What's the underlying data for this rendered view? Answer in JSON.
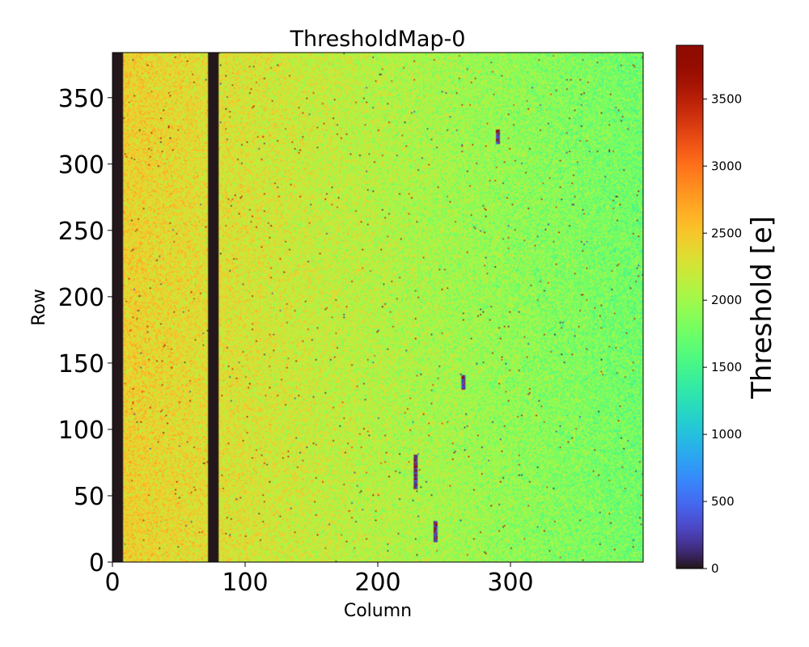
{
  "chart_data": {
    "type": "heatmap",
    "title": "ThresholdMap-0",
    "xlabel": "Column",
    "ylabel": "Row",
    "xlim": [
      0,
      400
    ],
    "ylim": [
      0,
      384
    ],
    "x_ticks": [
      0,
      100,
      200,
      300
    ],
    "y_ticks": [
      0,
      50,
      100,
      150,
      200,
      250,
      300,
      350
    ],
    "colorbar": {
      "label": "Threshold [e]",
      "range": [
        0,
        3900
      ],
      "ticks": [
        0,
        500,
        1000,
        1500,
        2000,
        2500,
        3000,
        3500
      ],
      "colormap": "turbo"
    },
    "masked_column_bands": [
      {
        "from": 0,
        "to": 8,
        "value": 0
      },
      {
        "from": 72,
        "to": 80,
        "value": 0
      }
    ],
    "value_field": {
      "threshold_at_column_0": 2450,
      "threshold_at_column_400": 1750,
      "noise": 350
    },
    "notable_features": [
      {
        "column": 228,
        "row_from": 55,
        "row_to": 80,
        "description": "dark streak"
      },
      {
        "column": 243,
        "row_from": 15,
        "row_to": 30,
        "description": "dark streak"
      },
      {
        "column": 264,
        "row_from": 130,
        "row_to": 140,
        "description": "dark streak"
      },
      {
        "column": 290,
        "row_from": 315,
        "row_to": 325,
        "description": "dark streak"
      }
    ],
    "grid": false
  }
}
